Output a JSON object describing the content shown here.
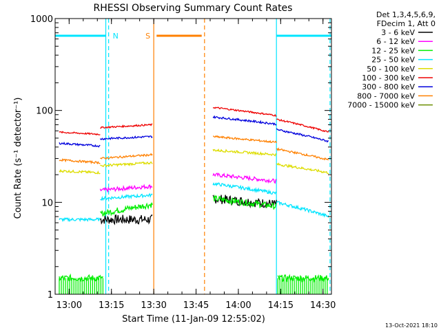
{
  "chart_data": {
    "type": "line",
    "title": "RHESSI Observing Summary Count Rates",
    "xlabel": "Start Time (11-Jan-09 12:55:02)",
    "ylabel": "Count Rate (s⁻¹ detector⁻¹)",
    "yscale": "log",
    "ylim": [
      1,
      1000
    ],
    "xlim": [
      "12:55:02",
      "14:33:00"
    ],
    "x_ticks": [
      "13:00",
      "13:15",
      "13:30",
      "13:45",
      "14:00",
      "14:15",
      "14:30"
    ],
    "y_ticks": [
      "1",
      "10",
      "100",
      "1000"
    ],
    "legend_header": [
      "Det 1,3,4,5,6,9,",
      "FDecim 1, Att 0"
    ],
    "legend_position": "top-right",
    "timestamp": "13-Oct-2021 18:10",
    "flags": [
      {
        "label": "N",
        "color": "#00e5ff",
        "spans": [
          [
            "12:55:02",
            "13:13:00"
          ],
          [
            "14:13:30",
            "14:33:00"
          ]
        ],
        "marker_time": "13:14:00"
      },
      {
        "label": "S",
        "color": "#ff8000",
        "spans": [
          [
            "13:31:00",
            "13:47:00"
          ]
        ],
        "marker_time": "13:30:00"
      }
    ],
    "vlines": [
      {
        "time": "13:13:00",
        "color": "#00e5ff",
        "style": "solid"
      },
      {
        "time": "13:14:00",
        "color": "#00e5ff",
        "style": "dashed"
      },
      {
        "time": "13:30:00",
        "color": "#ff8000",
        "style": "solid"
      },
      {
        "time": "13:48:00",
        "color": "#ff8000",
        "style": "dashed"
      },
      {
        "time": "14:13:30",
        "color": "#00e5ff",
        "style": "solid"
      },
      {
        "time": "14:32:30",
        "color": "#00e5ff",
        "style": "dashed"
      }
    ],
    "segments": [
      {
        "label": "3 - 6 keV",
        "color": "#000000",
        "noise": 0.12,
        "pieces": [
          {
            "x": [
              "13:06",
              "13:11"
            ],
            "y": [
              null,
              null
            ]
          },
          {
            "x": [
              "13:11",
              "13:29:30"
            ],
            "y": [
              6.5,
              6.5
            ]
          },
          {
            "x": [
              "13:51",
              "14:13:30"
            ],
            "y": [
              11,
              9.5
            ]
          }
        ]
      },
      {
        "label": "6 - 12 keV",
        "color": "#ff00ff",
        "noise": 0.05,
        "pieces": [
          {
            "x": [
              "13:11",
              "13:29:30"
            ],
            "y": [
              13.5,
              15
            ]
          },
          {
            "x": [
              "13:51",
              "14:13:30"
            ],
            "y": [
              20,
              17
            ]
          }
        ]
      },
      {
        "label": "12 - 25 keV",
        "color": "#00ee00",
        "noise": 0.08,
        "pieces": [
          {
            "x": [
              "13:11",
              "13:29:30"
            ],
            "y": [
              7.5,
              9.5
            ]
          },
          {
            "x": [
              "13:51",
              "14:13:30"
            ],
            "y": [
              11,
              9
            ]
          },
          {
            "x": [
              "12:56:30",
              "13:12"
            ],
            "y": [
              1.5,
              1.5
            ]
          },
          {
            "x": [
              "14:14",
              "14:32"
            ],
            "y": [
              1.5,
              1.5
            ]
          }
        ]
      },
      {
        "label": "25 - 50 keV",
        "color": "#00e5ff",
        "noise": 0.04,
        "pieces": [
          {
            "x": [
              "12:56:30",
              "13:11"
            ],
            "y": [
              6.5,
              6.5
            ]
          },
          {
            "x": [
              "13:11",
              "13:29:30"
            ],
            "y": [
              11,
              12
            ]
          },
          {
            "x": [
              "13:51",
              "14:13:30"
            ],
            "y": [
              16,
              12.5
            ]
          },
          {
            "x": [
              "14:13:30",
              "14:32"
            ],
            "y": [
              10,
              7
            ]
          }
        ]
      },
      {
        "label": "50 - 100 keV",
        "color": "#dddd00",
        "noise": 0.03,
        "pieces": [
          {
            "x": [
              "12:56:30",
              "13:11"
            ],
            "y": [
              22,
              21
            ]
          },
          {
            "x": [
              "13:11",
              "13:29:30"
            ],
            "y": [
              25,
              27
            ]
          },
          {
            "x": [
              "13:51",
              "14:13:30"
            ],
            "y": [
              37,
              33
            ]
          },
          {
            "x": [
              "14:13:30",
              "14:32"
            ],
            "y": [
              26,
              21
            ]
          }
        ]
      },
      {
        "label": "100 - 300 keV",
        "color": "#ee0000",
        "noise": 0.02,
        "pieces": [
          {
            "x": [
              "12:56:30",
              "13:11"
            ],
            "y": [
              58,
              55
            ]
          },
          {
            "x": [
              "13:11",
              "13:29:30"
            ],
            "y": [
              65,
              70
            ]
          },
          {
            "x": [
              "13:51",
              "14:13:30"
            ],
            "y": [
              108,
              88
            ]
          },
          {
            "x": [
              "14:13:30",
              "14:32"
            ],
            "y": [
              80,
              58
            ]
          }
        ]
      },
      {
        "label": "300 - 800 keV",
        "color": "#0000dd",
        "noise": 0.025,
        "pieces": [
          {
            "x": [
              "12:56:30",
              "13:11"
            ],
            "y": [
              44,
              41
            ]
          },
          {
            "x": [
              "13:11",
              "13:29:30"
            ],
            "y": [
              49,
              52
            ]
          },
          {
            "x": [
              "13:51",
              "14:13:30"
            ],
            "y": [
              85,
              71
            ]
          },
          {
            "x": [
              "14:13:30",
              "14:32"
            ],
            "y": [
              62,
              46
            ]
          }
        ]
      },
      {
        "label": "800 - 7000 keV",
        "color": "#ff8000",
        "noise": 0.025,
        "pieces": [
          {
            "x": [
              "12:56:30",
              "13:11"
            ],
            "y": [
              29,
              27
            ]
          },
          {
            "x": [
              "13:11",
              "13:29:30"
            ],
            "y": [
              30,
              33
            ]
          },
          {
            "x": [
              "13:51",
              "14:13:30"
            ],
            "y": [
              52,
              45
            ]
          },
          {
            "x": [
              "14:13:30",
              "14:32"
            ],
            "y": [
              38,
              29
            ]
          }
        ]
      },
      {
        "label": "7000 - 15000 keV",
        "color": "#6b8e00",
        "noise": 0.0,
        "pieces": []
      }
    ]
  }
}
